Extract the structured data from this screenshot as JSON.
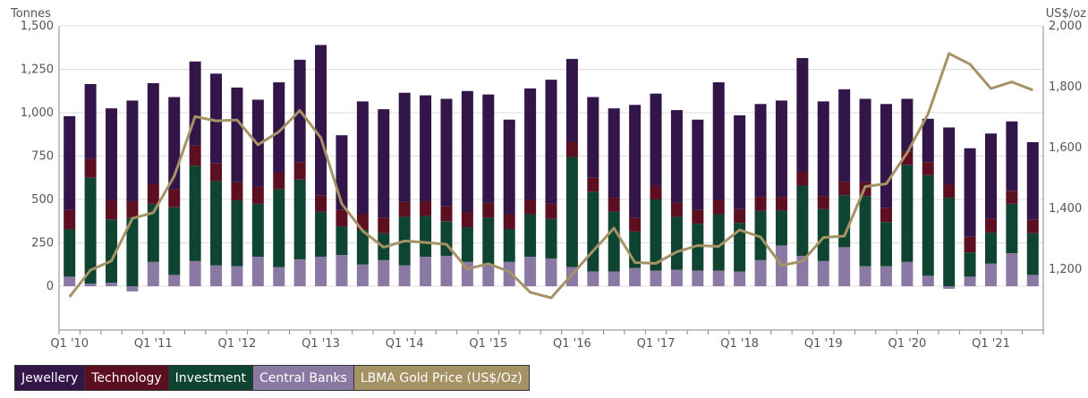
{
  "chart_data": {
    "type": "bar",
    "stacked": true,
    "left_axis_title": "Tonnes",
    "right_axis_title": "US$/oz",
    "left_ticks": [
      "0",
      "250",
      "500",
      "750",
      "1,000",
      "1,250",
      "1,500"
    ],
    "right_ticks": [
      "1,200",
      "1,400",
      "1,600",
      "1,800",
      "2,000"
    ],
    "ylim": [
      -250,
      1500
    ],
    "y2lim": [
      1000,
      2000
    ],
    "x_tick_labels": [
      "Q1 '10",
      "Q1 '11",
      "Q1 '12",
      "Q1 '13",
      "Q1 '14",
      "Q1 '15",
      "Q1 '16",
      "Q1 '17",
      "Q1 '18",
      "Q1 '19",
      "Q1 '20",
      "Q1 '21"
    ],
    "categories": [
      "Q1 '10",
      "Q2 '10",
      "Q3 '10",
      "Q4 '10",
      "Q1 '11",
      "Q2 '11",
      "Q3 '11",
      "Q4 '11",
      "Q1 '12",
      "Q2 '12",
      "Q3 '12",
      "Q4 '12",
      "Q1 '13",
      "Q2 '13",
      "Q3 '13",
      "Q4 '13",
      "Q1 '14",
      "Q2 '14",
      "Q3 '14",
      "Q4 '14",
      "Q1 '15",
      "Q2 '15",
      "Q3 '15",
      "Q4 '15",
      "Q1 '16",
      "Q2 '16",
      "Q3 '16",
      "Q4 '16",
      "Q1 '17",
      "Q2 '17",
      "Q3 '17",
      "Q4 '17",
      "Q1 '18",
      "Q2 '18",
      "Q3 '18",
      "Q4 '18",
      "Q1 '19",
      "Q2 '19",
      "Q3 '19",
      "Q4 '19",
      "Q1 '20",
      "Q2 '20",
      "Q3 '20",
      "Q4 '20",
      "Q1 '21",
      "Q2 '21",
      "Q3 '21"
    ],
    "series": [
      {
        "name": "Central Banks",
        "color": "#8a7aa3",
        "values": [
          55,
          15,
          20,
          -30,
          140,
          65,
          145,
          120,
          115,
          170,
          110,
          155,
          170,
          180,
          125,
          150,
          120,
          170,
          175,
          140,
          120,
          140,
          170,
          160,
          110,
          85,
          85,
          105,
          90,
          95,
          90,
          90,
          85,
          150,
          235,
          175,
          145,
          225,
          115,
          115,
          140,
          60,
          -15,
          55,
          130,
          190,
          65
        ]
      },
      {
        "name": "Investment",
        "color": "#0f4432",
        "values": [
          275,
          610,
          365,
          395,
          335,
          390,
          550,
          485,
          380,
          305,
          450,
          460,
          260,
          165,
          200,
          155,
          280,
          235,
          200,
          200,
          275,
          190,
          245,
          230,
          635,
          460,
          345,
          210,
          410,
          305,
          270,
          325,
          280,
          285,
          200,
          405,
          300,
          300,
          405,
          255,
          560,
          580,
          510,
          140,
          180,
          285,
          240
        ]
      },
      {
        "name": "Technology",
        "color": "#5d0f22",
        "values": [
          110,
          110,
          110,
          95,
          115,
          105,
          115,
          105,
          105,
          100,
          95,
          100,
          95,
          95,
          90,
          90,
          85,
          85,
          85,
          85,
          85,
          85,
          85,
          85,
          85,
          80,
          80,
          80,
          80,
          80,
          80,
          80,
          80,
          80,
          80,
          80,
          75,
          75,
          80,
          80,
          75,
          75,
          75,
          90,
          80,
          75,
          80
        ]
      },
      {
        "name": "Jewellery",
        "color": "#321549",
        "values": [
          540,
          430,
          530,
          580,
          580,
          530,
          485,
          515,
          545,
          500,
          520,
          590,
          865,
          430,
          650,
          625,
          630,
          610,
          620,
          700,
          625,
          545,
          640,
          715,
          480,
          465,
          515,
          650,
          530,
          535,
          520,
          680,
          540,
          535,
          555,
          655,
          545,
          535,
          480,
          600,
          305,
          250,
          330,
          510,
          490,
          400,
          445
        ]
      },
      {
        "name": "LBMA Gold Price (US$/Oz)",
        "color": "#a59265",
        "type": "line",
        "axis": "right",
        "values": [
          1109,
          1197,
          1227,
          1367,
          1386,
          1506,
          1702,
          1688,
          1691,
          1609,
          1652,
          1722,
          1632,
          1415,
          1326,
          1272,
          1293,
          1288,
          1282,
          1201,
          1218,
          1192,
          1124,
          1106,
          1183,
          1260,
          1335,
          1222,
          1219,
          1257,
          1278,
          1275,
          1329,
          1306,
          1213,
          1226,
          1304,
          1309,
          1472,
          1481,
          1583,
          1711,
          1909,
          1874,
          1794,
          1816,
          1789
        ]
      }
    ],
    "legend": [
      "Jewellery",
      "Technology",
      "Investment",
      "Central Banks",
      "LBMA Gold Price (US$/Oz)"
    ],
    "legend_position": "bottom-left",
    "grid": true
  }
}
